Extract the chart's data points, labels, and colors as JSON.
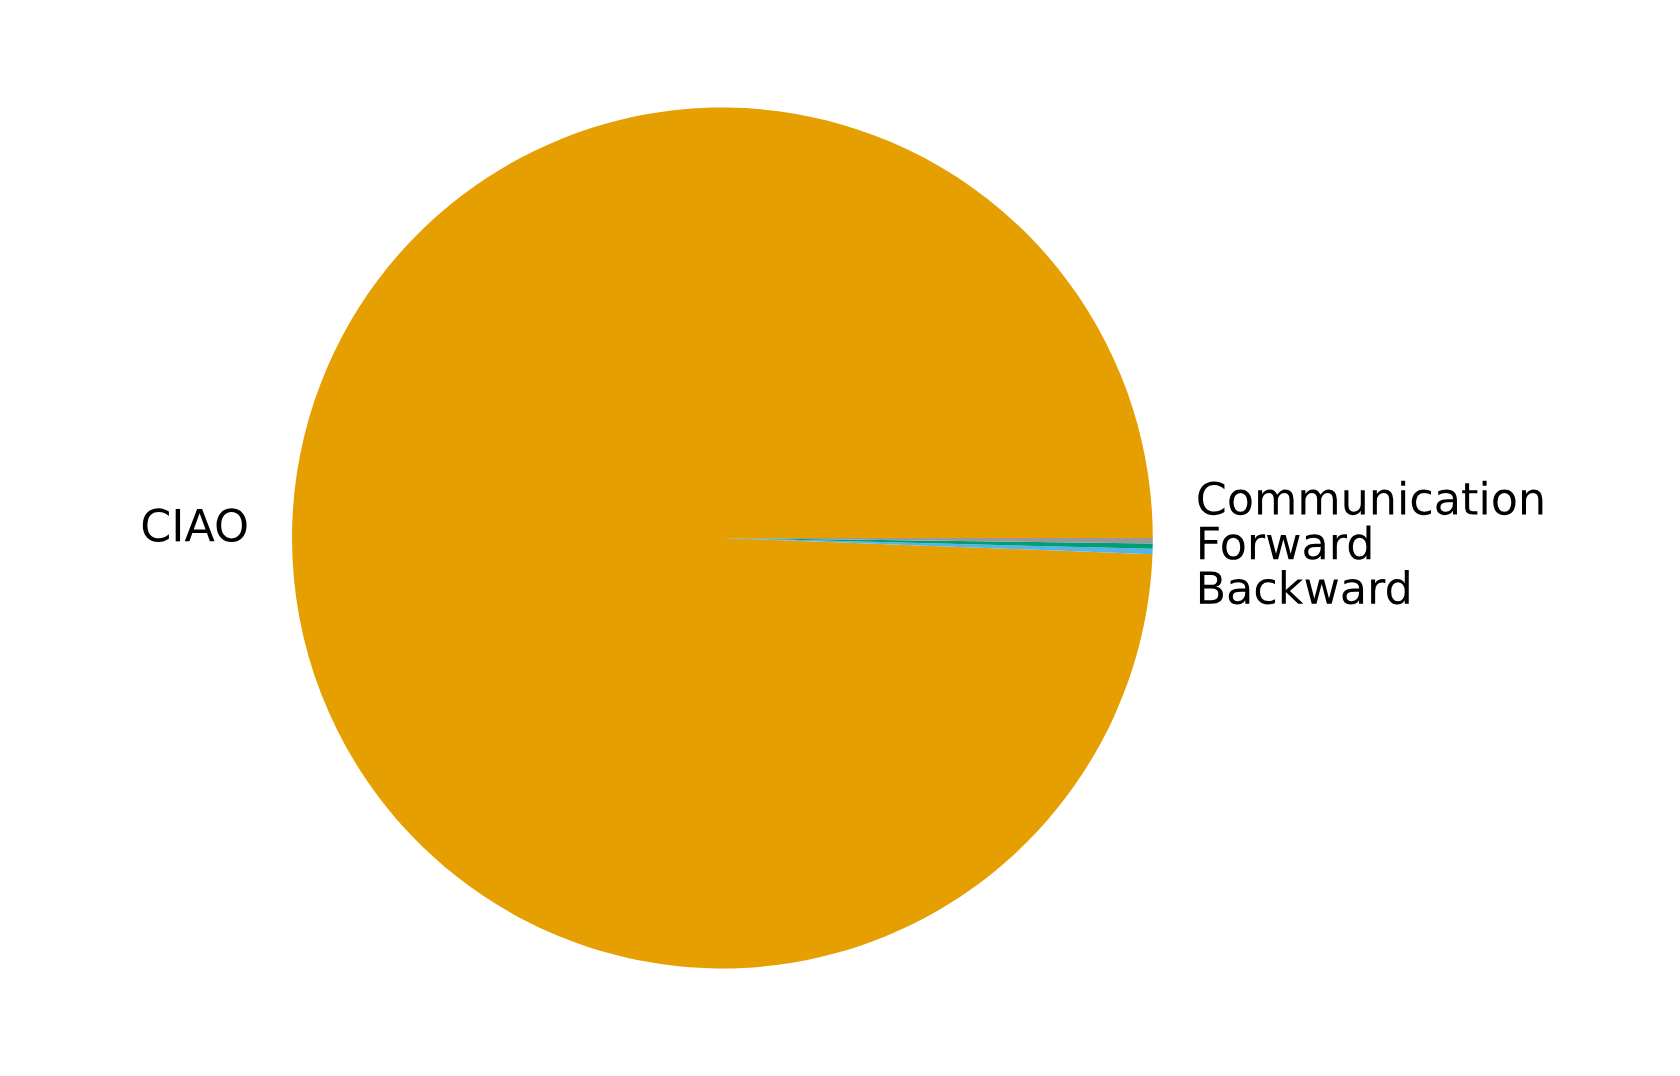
{
  "chart_data": {
    "type": "pie",
    "categories": [
      "CIAO",
      "Backward",
      "Forward",
      "Communication"
    ],
    "values": [
      99.4,
      0.2,
      0.2,
      0.2
    ],
    "colors": [
      "#e69f00",
      "#56b4e9",
      "#009e73",
      "#999999"
    ]
  }
}
